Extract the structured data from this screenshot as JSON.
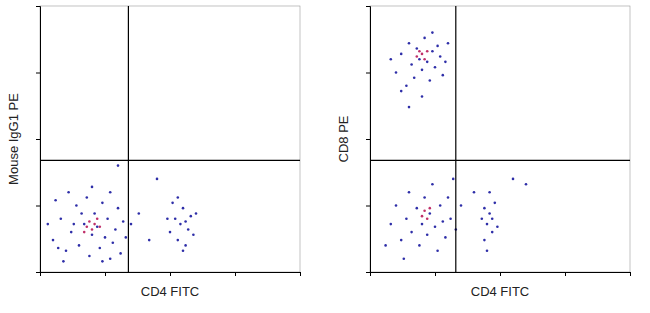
{
  "chart_data": [
    {
      "type": "scatter",
      "x_label": "CD4 FITC",
      "y_label": "Mouse IgG1 PE",
      "xlim": [
        0,
        100
      ],
      "ylim": [
        0,
        100
      ],
      "xticks": [
        0,
        25,
        50,
        75,
        100
      ],
      "yticks": [
        0,
        25,
        50,
        75,
        100
      ],
      "tick_labels": false,
      "quadrant_x": 34,
      "quadrant_y": 42,
      "series": [
        {
          "color": "#2e2ea8",
          "x": [
            5,
            8,
            10,
            12,
            14,
            15,
            17,
            18,
            19,
            20,
            21,
            22,
            23,
            24,
            25,
            26,
            27,
            28,
            29,
            30,
            31,
            32,
            33,
            6,
            9,
            11,
            13,
            16,
            24,
            35,
            38,
            42,
            3,
            7,
            20,
            27,
            50,
            52,
            53,
            54,
            55,
            56,
            57,
            58,
            51,
            55,
            59,
            53,
            56,
            49,
            60,
            30,
            45
          ],
          "values": [
            12,
            20,
            8,
            15,
            25,
            10,
            18,
            28,
            6,
            14,
            22,
            17,
            9,
            26,
            13,
            20,
            30,
            11,
            16,
            24,
            7,
            19,
            13,
            27,
            4,
            30,
            18,
            22,
            4,
            18,
            22,
            12,
            18,
            9,
            32,
            5,
            15,
            20,
            12,
            18,
            24,
            10,
            16,
            21,
            26,
            8,
            14,
            28,
            19,
            20,
            22,
            40,
            35
          ]
        },
        {
          "color": "#c0306a",
          "x": [
            18,
            19,
            20,
            21,
            22,
            17,
            23
          ],
          "values": [
            17,
            19,
            16,
            18,
            20,
            15,
            17
          ]
        }
      ]
    },
    {
      "type": "scatter",
      "x_label": "CD4 FITC",
      "y_label": "CD8 PE",
      "xlim": [
        0,
        100
      ],
      "ylim": [
        0,
        100
      ],
      "xticks": [
        0,
        25,
        50,
        75,
        100
      ],
      "yticks": [
        0,
        25,
        50,
        75,
        100
      ],
      "tick_labels": false,
      "quadrant_x": 33,
      "quadrant_y": 42,
      "series": [
        {
          "color": "#2e2ea8",
          "x": [
            10,
            12,
            14,
            15,
            16,
            17,
            18,
            19,
            20,
            21,
            22,
            23,
            24,
            25,
            26,
            27,
            28,
            29,
            12,
            30,
            15,
            20,
            24,
            8,
            8,
            10,
            12,
            14,
            15,
            16,
            18,
            19,
            20,
            21,
            22,
            23,
            24,
            25,
            26,
            27,
            28,
            29,
            30,
            31,
            32,
            33,
            6,
            13,
            35,
            40,
            44,
            45,
            46,
            47,
            48,
            45,
            46,
            47,
            44,
            49,
            43,
            55,
            60
          ],
          "values": [
            75,
            82,
            70,
            86,
            78,
            73,
            84,
            80,
            76,
            88,
            79,
            72,
            83,
            77,
            85,
            81,
            74,
            79,
            68,
            86,
            62,
            66,
            90,
            80,
            18,
            25,
            12,
            20,
            30,
            15,
            24,
            10,
            18,
            28,
            14,
            22,
            33,
            17,
            8,
            25,
            19,
            13,
            28,
            20,
            35,
            16,
            10,
            5,
            25,
            30,
            12,
            18,
            22,
            15,
            26,
            8,
            30,
            20,
            24,
            17,
            20,
            35,
            33
          ]
        },
        {
          "color": "#c0306a",
          "x": [
            18,
            19,
            20,
            21,
            22,
            20,
            21,
            22,
            23
          ],
          "values": [
            81,
            83,
            82,
            80,
            83,
            21,
            23,
            20,
            24
          ]
        }
      ]
    }
  ]
}
